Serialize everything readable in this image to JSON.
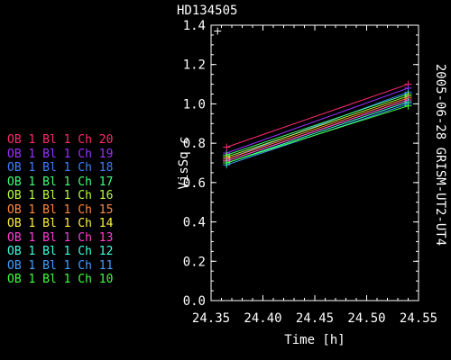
{
  "chart_data": {
    "type": "line",
    "title": "HD134505",
    "side_label": "2005-06-28 GRISM-UT2-UT4",
    "xlabel": "Time [h]",
    "ylabel": "VisSq c",
    "xlim": [
      24.35,
      24.55
    ],
    "ylim": [
      0.0,
      1.4
    ],
    "x_ticks": [
      "24.35",
      "24.40",
      "24.45",
      "24.50",
      "24.55"
    ],
    "y_ticks": [
      "0.0",
      "0.2",
      "0.4",
      "0.6",
      "0.8",
      "1.0",
      "1.2",
      "1.4"
    ],
    "x": [
      24.365,
      24.54
    ],
    "series": [
      {
        "name": "OB 1 Bl 1 Ch 20",
        "color": "#ff2a6e",
        "values": [
          0.78,
          1.1
        ]
      },
      {
        "name": "OB 1 Bl 1 Ch 19",
        "color": "#9b30ff",
        "values": [
          0.75,
          1.08
        ]
      },
      {
        "name": "OB 1 Bl 1 Ch 18",
        "color": "#3f7fff",
        "values": [
          0.72,
          1.06
        ]
      },
      {
        "name": "OB 1 Bl 1 Ch 17",
        "color": "#3fff7a",
        "values": [
          0.74,
          1.05
        ]
      },
      {
        "name": "OB 1 Bl 1 Ch 16",
        "color": "#b9ff3f",
        "values": [
          0.73,
          1.04
        ]
      },
      {
        "name": "OB 1 Bl 1 Ch 15",
        "color": "#ff8a3f",
        "values": [
          0.72,
          1.03
        ]
      },
      {
        "name": "OB 1 Bl 1 Ch 14",
        "color": "#fff03f",
        "values": [
          0.71,
          1.02
        ]
      },
      {
        "name": "OB 1 Bl 1 Ch 13",
        "color": "#ff3fd8",
        "values": [
          0.71,
          1.02
        ]
      },
      {
        "name": "OB 1 Bl 1 Ch 12",
        "color": "#3fffe0",
        "values": [
          0.7,
          1.01
        ]
      },
      {
        "name": "OB 1 Bl 1 Ch 11",
        "color": "#3fa0ff",
        "values": [
          0.69,
          1.0
        ]
      },
      {
        "name": "OB 1 Bl 1 Ch 10",
        "color": "#3fff3f",
        "values": [
          0.7,
          0.99
        ]
      }
    ],
    "outlier": {
      "x": 24.365,
      "y": 1.37,
      "color": "#ffffff"
    },
    "grid": false,
    "legend_position": "left"
  }
}
